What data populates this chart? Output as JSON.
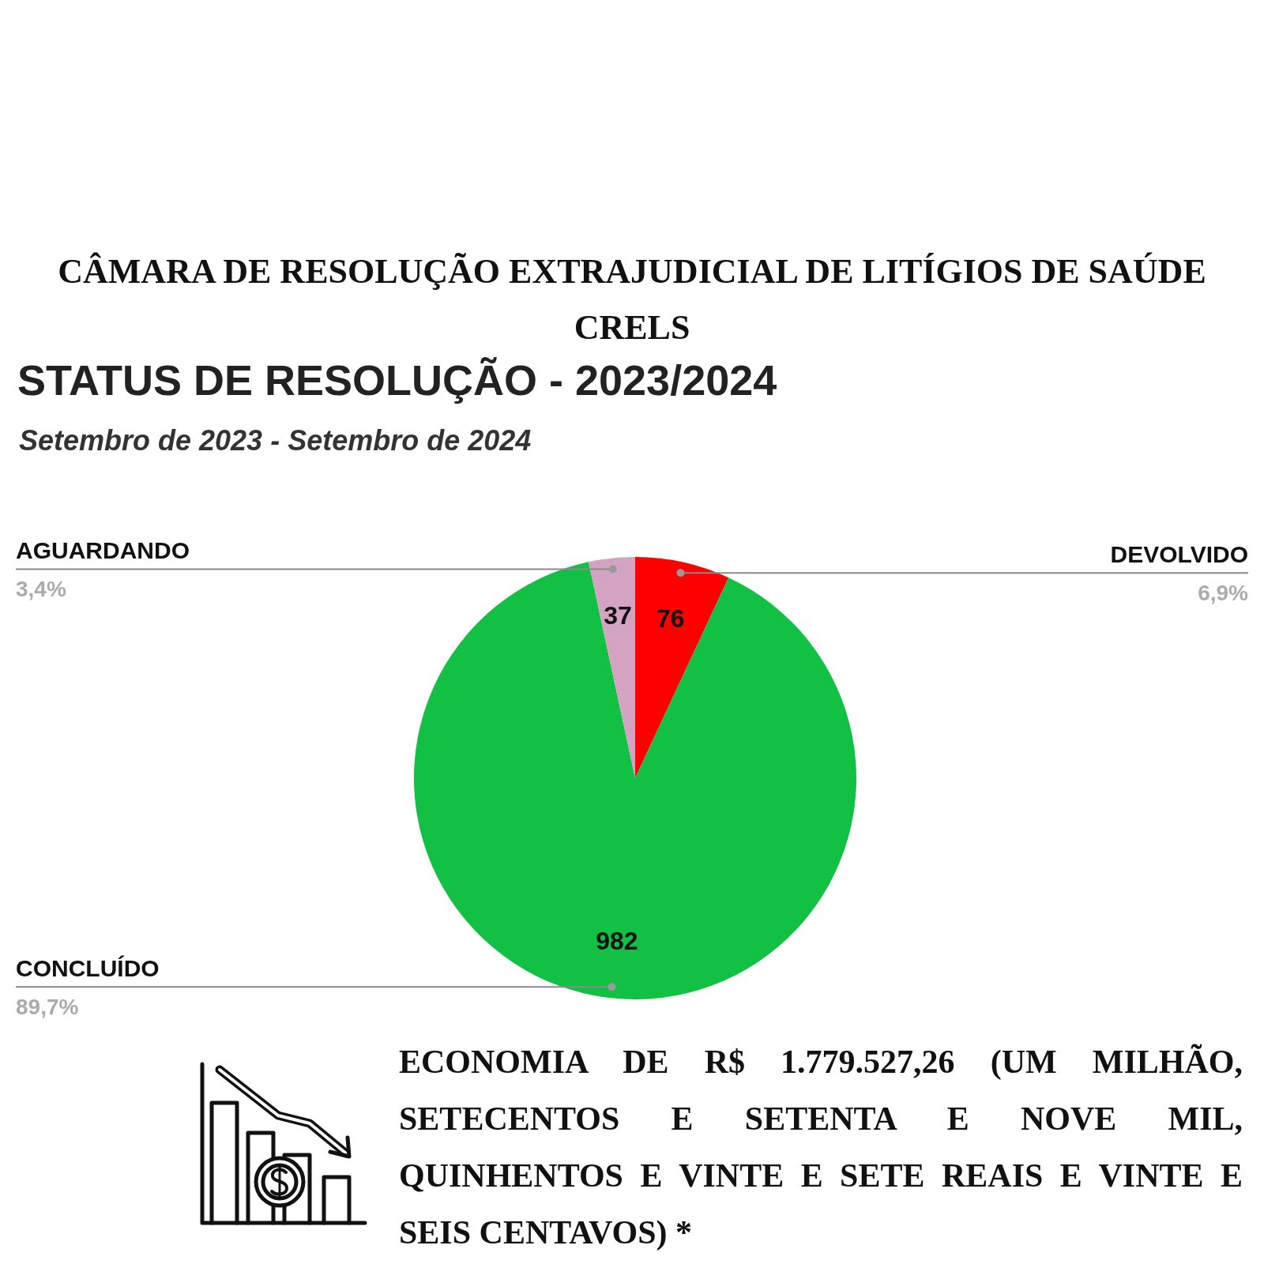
{
  "chart_data": {
    "type": "pie",
    "title": "STATUS DE RESOLUÇÃO - 2023/2024",
    "subtitle": "Setembro de 2023 - Setembro de 2024",
    "categories": [
      "DEVOLVIDO",
      "CONCLUÍDO",
      "AGUARDANDO"
    ],
    "values": [
      76,
      982,
      37
    ],
    "colors": [
      "#ff0000",
      "#12c044",
      "#d4a3c2"
    ],
    "data_labels": true,
    "annotations": [
      "CÂMARA DE RESOLUÇÃO EXTRAJUDICIAL DE LITÍGIOS DE SAÚDE CRELS",
      "ECONOMIA DE R$ 1.779.527,26 (UM MILHÃO, SETECENTOS E SETENTA E NOVE MIL, QUINHENTOS E VINTE E SETE REAIS E VINTE E SEIS CENTAVOS) *",
      {
        "text": "6,9%",
        "x": "DEVOLVIDO"
      },
      {
        "text": "89,7%",
        "x": "CONCLUÍDO"
      },
      {
        "text": "3,4%",
        "x": "AGUARDANDO"
      }
    ]
  }
}
